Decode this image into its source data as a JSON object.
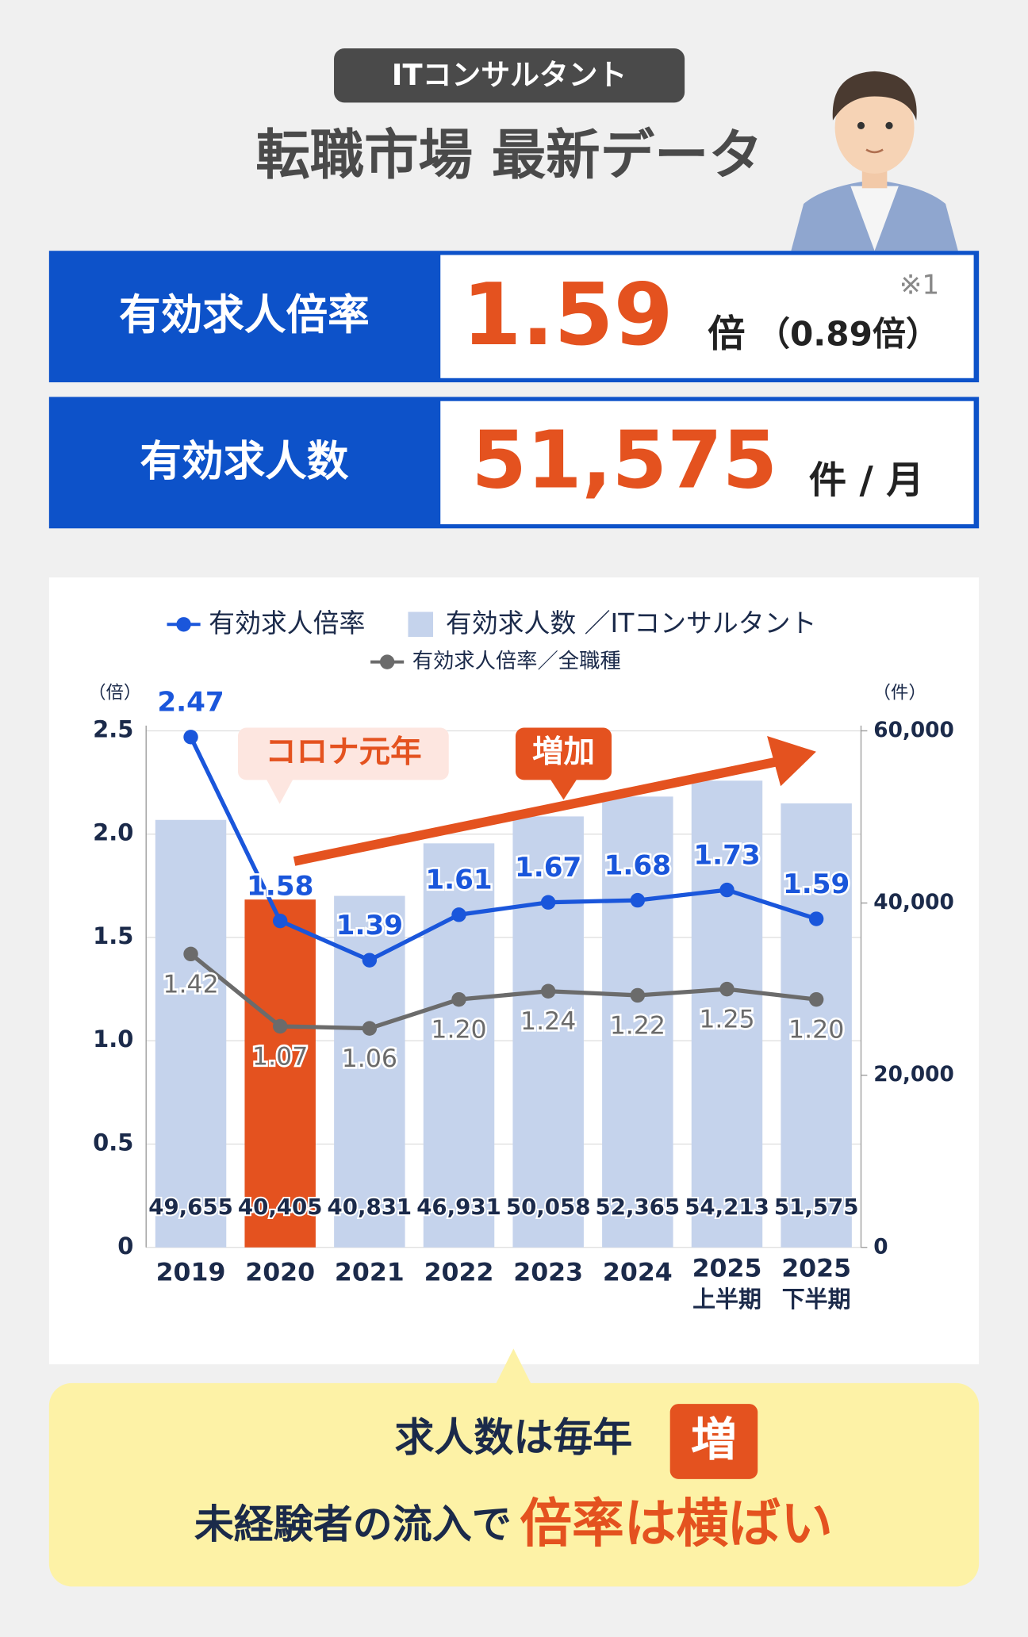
{
  "header": {
    "badge": "ITコンサルタント",
    "title": "転職市場 最新データ"
  },
  "cards": [
    {
      "label": "有効求人倍率",
      "value": "1.59",
      "unit": "倍",
      "sub": "（0.89倍）",
      "note": "※1"
    },
    {
      "label": "有効求人数",
      "value": "51,575",
      "unit": "件 / 月"
    }
  ],
  "chart_data": {
    "type": "bar-line",
    "categories": [
      "2019",
      "2020",
      "2021",
      "2022",
      "2023",
      "2024",
      "2025\n上半期",
      "2025\n下半期"
    ],
    "series": [
      {
        "name": "有効求人倍率",
        "type": "line",
        "color": "#1a56db",
        "values": [
          2.47,
          1.58,
          1.39,
          1.61,
          1.67,
          1.68,
          1.73,
          1.59
        ]
      },
      {
        "name": "有効求人数 ／ITコンサルタント",
        "type": "bar",
        "axis": "y2",
        "color": "#c5d3ec",
        "colors": [
          "#c5d3ec",
          "#e4521f",
          "#c5d3ec",
          "#c5d3ec",
          "#c5d3ec",
          "#c5d3ec",
          "#c5d3ec",
          "#c5d3ec"
        ],
        "values": [
          49655,
          40405,
          40831,
          46931,
          50058,
          52365,
          54213,
          51575
        ],
        "value_labels": [
          "49,655",
          "40,405",
          "40,831",
          "46,931",
          "50,058",
          "52,365",
          "54,213",
          "51,575"
        ]
      },
      {
        "name": "有効求人倍率／全職種",
        "type": "line",
        "color": "#6b6b6b",
        "values": [
          1.42,
          1.07,
          1.06,
          1.2,
          1.24,
          1.22,
          1.25,
          1.2
        ],
        "value_labels": [
          "1.42",
          "1.07",
          "1.06",
          "1.20",
          "1.24",
          "1.22",
          "1.25",
          "1.20"
        ]
      }
    ],
    "ylabel": "（倍）",
    "y2label": "（件）",
    "ylim": [
      0,
      2.5
    ],
    "yticks": [
      0,
      0.5,
      {
        "value": 1,
        "label": "1.0"
      },
      1.5,
      {
        "value": 2,
        "label": "2.0"
      },
      2.5
    ],
    "y2lim": [
      0,
      60000
    ],
    "y2ticks": [
      0,
      {
        "value": 20000,
        "label": "20,000"
      },
      {
        "value": 40000,
        "label": "40,000"
      },
      {
        "value": 60000,
        "label": "60,000"
      }
    ],
    "grid": true,
    "annotations": [
      "コロナ元年",
      "増加"
    ]
  },
  "footer": {
    "line1": "求人数は毎年",
    "badge": "増",
    "line2": "未経験者の流入で",
    "highlight": "倍率は横ばい"
  }
}
